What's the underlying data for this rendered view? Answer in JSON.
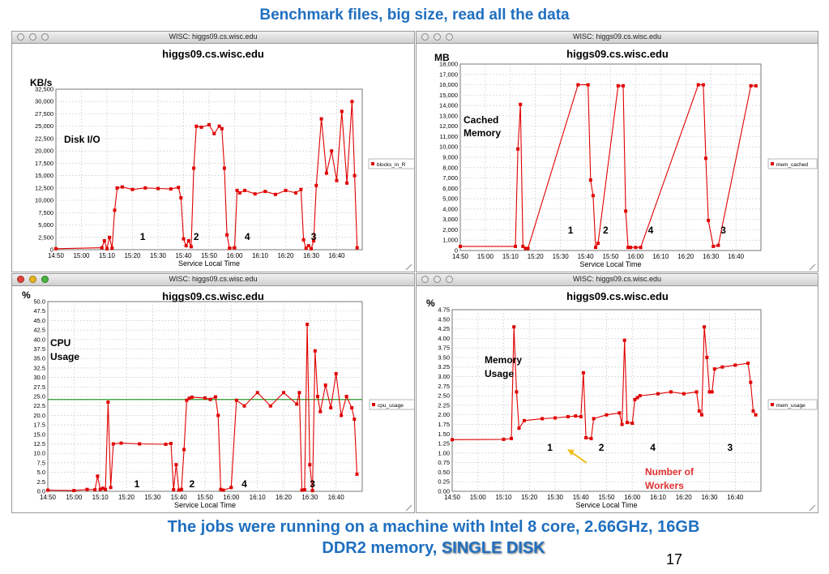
{
  "slide": {
    "title": "Benchmark files, big size, read all the data",
    "footer_line1": "The jobs were running on a machine with Intel 8 core, 2.66GHz, 16GB",
    "footer_line2_prefix": "DDR2 memory, ",
    "footer_line2_emphasis": "SINGLE DISK",
    "page_number": "17",
    "colors": {
      "title": "#1f6fc0",
      "series": "#e00000",
      "reference_line": "#2a9a2a",
      "arrow": "#f0c020",
      "workers_label": "#e03030"
    }
  },
  "window_title": "WISC: higgs09.cs.wisc.edu",
  "chart_data": [
    {
      "id": "disk",
      "type": "line",
      "title": "higgs09.cs.wisc.edu",
      "ylabel": "KB/s",
      "xlabel": "Service Local Time",
      "x_ticks": [
        "14:50",
        "15:00",
        "15:10",
        "15:20",
        "15:30",
        "15:40",
        "15:50",
        "16:00",
        "16:10",
        "16:20",
        "16:30",
        "16:40"
      ],
      "ylim": [
        0,
        32500
      ],
      "y_ticks": [
        "0",
        "2,500",
        "5,000",
        "7,500",
        "10,000",
        "12,500",
        "15,000",
        "17,500",
        "20,000",
        "22,500",
        "25,000",
        "27,500",
        "30,000",
        "32,500"
      ],
      "legend": "blocks_in_R",
      "annotation": "Disk I/O",
      "phase_labels": [
        {
          "text": "1",
          "x": "15:24"
        },
        {
          "text": "2",
          "x": "15:45"
        },
        {
          "text": "4",
          "x": "16:05"
        },
        {
          "text": "3",
          "x": "16:31"
        }
      ],
      "series": [
        {
          "name": "blocks_in_R",
          "x": [
            "14:50",
            "15:08",
            "15:09",
            "15:10",
            "15:11",
            "15:12",
            "15:13",
            "15:14",
            "15:16",
            "15:20",
            "15:25",
            "15:30",
            "15:35",
            "15:38",
            "15:39",
            "15:40",
            "15:41",
            "15:42",
            "15:43",
            "15:44",
            "15:45",
            "15:47",
            "15:50",
            "15:52",
            "15:54",
            "15:55",
            "15:56",
            "15:57",
            "15:58",
            "16:00",
            "16:01",
            "16:02",
            "16:04",
            "16:08",
            "16:12",
            "16:16",
            "16:20",
            "16:24",
            "16:26",
            "16:27",
            "16:28",
            "16:29",
            "16:30",
            "16:31",
            "16:32",
            "16:34",
            "16:36",
            "16:38",
            "16:40",
            "16:42",
            "16:44",
            "16:46",
            "16:47",
            "16:48"
          ],
          "values": [
            200,
            400,
            1800,
            200,
            2500,
            300,
            8000,
            12500,
            12700,
            12200,
            12500,
            12400,
            12300,
            12600,
            10500,
            2200,
            800,
            1800,
            600,
            16500,
            25000,
            24800,
            25300,
            23500,
            25000,
            24500,
            16500,
            3000,
            300,
            400,
            12000,
            11500,
            12000,
            11300,
            11800,
            11200,
            12000,
            11500,
            12200,
            2000,
            300,
            800,
            200,
            1800,
            13000,
            26500,
            15500,
            20000,
            14000,
            28000,
            13500,
            30000,
            15000,
            400
          ]
        }
      ]
    },
    {
      "id": "mem",
      "type": "line",
      "title": "higgs09.cs.wisc.edu",
      "ylabel": "MB",
      "xlabel": "Service Local Time",
      "x_ticks": [
        "14:50",
        "15:00",
        "15:10",
        "15:20",
        "15:30",
        "15:40",
        "15:50",
        "16:00",
        "16:10",
        "16:20",
        "16:30",
        "16:40"
      ],
      "ylim": [
        0,
        18000
      ],
      "y_ticks": [
        "0",
        "1,000",
        "2,000",
        "3,000",
        "4,000",
        "5,000",
        "6,000",
        "7,000",
        "8,000",
        "9,000",
        "10,000",
        "11,000",
        "12,000",
        "13,000",
        "14,000",
        "15,000",
        "16,000",
        "17,000",
        "18,000"
      ],
      "legend": "mem_cached",
      "annotation_line1": "Cached",
      "annotation_line2": "Memory",
      "phase_labels": [
        {
          "text": "1",
          "x": "15:34"
        },
        {
          "text": "2",
          "x": "15:48"
        },
        {
          "text": "4",
          "x": "16:06"
        },
        {
          "text": "3",
          "x": "16:35"
        }
      ],
      "series": [
        {
          "name": "mem_cached",
          "x": [
            "14:50",
            "15:12",
            "15:13",
            "15:14",
            "15:15",
            "15:16",
            "15:17",
            "15:37",
            "15:41",
            "15:42",
            "15:43",
            "15:44",
            "15:45",
            "15:53",
            "15:55",
            "15:56",
            "15:57",
            "15:58",
            "16:00",
            "16:02",
            "16:25",
            "16:27",
            "16:28",
            "16:29",
            "16:31",
            "16:33",
            "16:46",
            "16:48"
          ],
          "values": [
            400,
            400,
            9800,
            14100,
            400,
            200,
            200,
            16000,
            16000,
            6800,
            5300,
            300,
            700,
            15900,
            15900,
            3800,
            300,
            300,
            300,
            300,
            16000,
            16000,
            8900,
            2900,
            400,
            500,
            15900,
            15900
          ]
        }
      ]
    },
    {
      "id": "cpu",
      "type": "line",
      "title": "higgs09.cs.wisc.edu",
      "ylabel": "%",
      "xlabel": "Service Local Time",
      "x_ticks": [
        "14:50",
        "15:00",
        "15:10",
        "15:20",
        "15:30",
        "15:40",
        "15:50",
        "16:00",
        "16:10",
        "16:20",
        "16:30",
        "16:40"
      ],
      "ylim": [
        0,
        50
      ],
      "y_ticks": [
        "0.0",
        "2.5",
        "5.0",
        "7.5",
        "10.0",
        "12.5",
        "15.0",
        "17.5",
        "20.0",
        "22.5",
        "25.0",
        "27.5",
        "30.0",
        "32.5",
        "35.0",
        "37.5",
        "40.0",
        "42.5",
        "45.0",
        "47.5",
        "50.0"
      ],
      "legend": "cpu_usage",
      "annotation_line1": "CPU",
      "annotation_line2": "Usage",
      "reference_line": 24.2,
      "phase_labels": [
        {
          "text": "1",
          "x": "15:24"
        },
        {
          "text": "2",
          "x": "15:45"
        },
        {
          "text": "4",
          "x": "16:05"
        },
        {
          "text": "3",
          "x": "16:31"
        }
      ],
      "series": [
        {
          "name": "cpu_usage",
          "x": [
            "14:50",
            "15:00",
            "15:05",
            "15:08",
            "15:09",
            "15:10",
            "15:11",
            "15:12",
            "15:13",
            "15:14",
            "15:15",
            "15:18",
            "15:25",
            "15:35",
            "15:37",
            "15:38",
            "15:39",
            "15:40",
            "15:41",
            "15:42",
            "15:43",
            "15:44",
            "15:45",
            "15:50",
            "15:52",
            "15:54",
            "15:55",
            "15:56",
            "15:57",
            "16:00",
            "16:02",
            "16:05",
            "16:10",
            "16:15",
            "16:20",
            "16:25",
            "16:26",
            "16:27",
            "16:28",
            "16:29",
            "16:30",
            "16:31",
            "16:32",
            "16:33",
            "16:34",
            "16:36",
            "16:38",
            "16:40",
            "16:42",
            "16:44",
            "16:46",
            "16:47",
            "16:48"
          ],
          "values": [
            0.3,
            0.2,
            0.5,
            0.4,
            4,
            0.5,
            0.8,
            0.5,
            23.5,
            1,
            12.5,
            12.7,
            12.5,
            12.4,
            12.6,
            0.4,
            7,
            0.3,
            0.5,
            11,
            24,
            24.5,
            24.8,
            24.6,
            24.2,
            24.9,
            20,
            0.5,
            0.3,
            1,
            24,
            22.5,
            26,
            22.5,
            26,
            23,
            26,
            0.3,
            0.4,
            44,
            7,
            0.2,
            37,
            25,
            21,
            28,
            22,
            31,
            20,
            25,
            22,
            19,
            4.5
          ]
        }
      ]
    },
    {
      "id": "memusage",
      "type": "line",
      "title": "higgs09.cs.wisc.edu",
      "ylabel": "%",
      "xlabel": "Service Local Time",
      "x_ticks": [
        "14:50",
        "15:00",
        "15:10",
        "15:20",
        "15:30",
        "15:40",
        "15:50",
        "16:00",
        "16:10",
        "16:20",
        "16:30",
        "16:40"
      ],
      "ylim": [
        0,
        4.75
      ],
      "y_ticks": [
        "0.00",
        "0.25",
        "0.50",
        "0.75",
        "1.00",
        "1.25",
        "1.50",
        "1.75",
        "2.00",
        "2.25",
        "2.50",
        "2.75",
        "3.00",
        "3.25",
        "3.50",
        "3.75",
        "4.00",
        "4.25",
        "4.50",
        "4.75"
      ],
      "legend": "mem_usage",
      "annotation_line1": "Memory",
      "annotation_line2": "Usage",
      "workers_line1": "Number of",
      "workers_line2": "Workers",
      "phase_labels": [
        {
          "text": "1",
          "x": "15:28"
        },
        {
          "text": "2",
          "x": "15:48"
        },
        {
          "text": "4",
          "x": "16:08"
        },
        {
          "text": "3",
          "x": "16:38"
        }
      ],
      "series": [
        {
          "name": "mem_usage",
          "x": [
            "14:50",
            "15:10",
            "15:13",
            "15:14",
            "15:15",
            "15:16",
            "15:18",
            "15:25",
            "15:30",
            "15:35",
            "15:38",
            "15:40",
            "15:41",
            "15:42",
            "15:44",
            "15:45",
            "15:50",
            "15:55",
            "15:56",
            "15:57",
            "15:58",
            "16:00",
            "16:01",
            "16:02",
            "16:03",
            "16:10",
            "16:15",
            "16:20",
            "16:25",
            "16:26",
            "16:27",
            "16:28",
            "16:29",
            "16:30",
            "16:31",
            "16:32",
            "16:35",
            "16:40",
            "16:45",
            "16:46",
            "16:47",
            "16:48"
          ],
          "values": [
            1.35,
            1.36,
            1.38,
            4.3,
            2.6,
            1.65,
            1.85,
            1.9,
            1.92,
            1.95,
            1.97,
            1.95,
            3.1,
            1.4,
            1.38,
            1.9,
            2.0,
            2.05,
            1.75,
            3.95,
            1.8,
            1.78,
            2.4,
            2.45,
            2.5,
            2.55,
            2.6,
            2.55,
            2.6,
            2.1,
            2.0,
            4.3,
            3.5,
            2.6,
            2.6,
            3.2,
            3.25,
            3.3,
            3.35,
            2.85,
            2.1,
            2.0
          ]
        }
      ]
    }
  ]
}
